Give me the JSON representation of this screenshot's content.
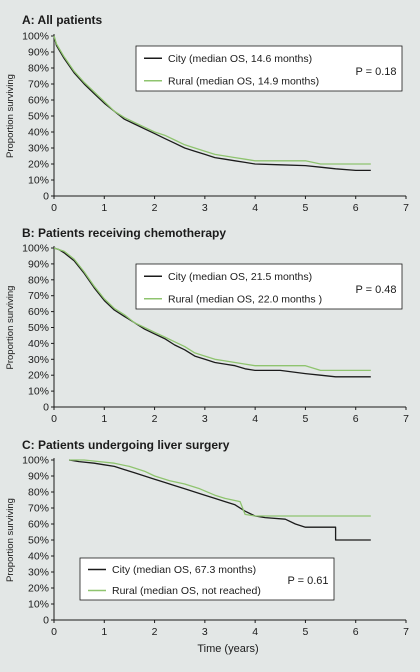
{
  "figure": {
    "xlabel": "Time (years)",
    "ylabel": "Proportion surviving"
  },
  "colors": {
    "background": "#e3e7e6",
    "city": "#1b1b1b",
    "rural": "#8fc46f",
    "axis": "#1b1b1b"
  },
  "chart_data": [
    {
      "type": "line",
      "title": "A:  All patients",
      "xlabel": "",
      "ylabel": "Proportion surviving",
      "xlim": [
        0,
        7
      ],
      "ylim": [
        0,
        100
      ],
      "x_ticks": [
        0,
        1,
        2,
        3,
        4,
        5,
        6,
        7
      ],
      "y_ticks": [
        0,
        10,
        20,
        30,
        40,
        50,
        60,
        70,
        80,
        90,
        100
      ],
      "y_tick_labels": [
        "0",
        "10%",
        "20%",
        "30%",
        "40%",
        "50%",
        "60%",
        "70%",
        "80%",
        "90%",
        "100%"
      ],
      "legend_position": "top-right",
      "annotation": "P = 0.18",
      "series": [
        {
          "name": "City",
          "legend_label": "City      (median OS, 14.6 months)",
          "color": "#1b1b1b",
          "points": [
            [
              0,
              100
            ],
            [
              0.05,
              94
            ],
            [
              0.2,
              86
            ],
            [
              0.4,
              77
            ],
            [
              0.6,
              70
            ],
            [
              0.8,
              64
            ],
            [
              1.0,
              58
            ],
            [
              1.2,
              53
            ],
            [
              1.4,
              48
            ],
            [
              1.6,
              45
            ],
            [
              1.8,
              42
            ],
            [
              2.0,
              39
            ],
            [
              2.2,
              36
            ],
            [
              2.4,
              33
            ],
            [
              2.6,
              30
            ],
            [
              2.8,
              28
            ],
            [
              3.0,
              26
            ],
            [
              3.2,
              24
            ],
            [
              3.4,
              23
            ],
            [
              3.6,
              22
            ],
            [
              3.8,
              21
            ],
            [
              4.0,
              20
            ],
            [
              4.5,
              19.5
            ],
            [
              5.0,
              19
            ],
            [
              5.3,
              18
            ],
            [
              5.6,
              17
            ],
            [
              6.0,
              16
            ],
            [
              6.3,
              16
            ]
          ]
        },
        {
          "name": "Rural",
          "legend_label": "Rural     (median OS, 14.9 months)",
          "color": "#8fc46f",
          "points": [
            [
              0,
              100
            ],
            [
              0.05,
              95
            ],
            [
              0.2,
              87
            ],
            [
              0.4,
              78
            ],
            [
              0.6,
              71
            ],
            [
              0.8,
              65
            ],
            [
              1.0,
              59
            ],
            [
              1.2,
              53
            ],
            [
              1.4,
              49
            ],
            [
              1.6,
              46
            ],
            [
              1.8,
              43
            ],
            [
              2.0,
              40
            ],
            [
              2.2,
              38
            ],
            [
              2.4,
              35
            ],
            [
              2.6,
              32
            ],
            [
              2.8,
              30
            ],
            [
              3.0,
              28
            ],
            [
              3.2,
              26
            ],
            [
              3.4,
              25
            ],
            [
              3.6,
              24
            ],
            [
              3.8,
              23
            ],
            [
              4.0,
              22
            ],
            [
              4.5,
              22
            ],
            [
              5.0,
              22
            ],
            [
              5.3,
              20
            ],
            [
              6.0,
              20
            ],
            [
              6.3,
              20
            ]
          ]
        }
      ]
    },
    {
      "type": "line",
      "title": "B:  Patients receiving chemotherapy",
      "xlabel": "",
      "ylabel": "Proportion surviving",
      "xlim": [
        0,
        7
      ],
      "ylim": [
        0,
        100
      ],
      "x_ticks": [
        0,
        1,
        2,
        3,
        4,
        5,
        6,
        7
      ],
      "y_ticks": [
        0,
        10,
        20,
        30,
        40,
        50,
        60,
        70,
        80,
        90,
        100
      ],
      "y_tick_labels": [
        "0",
        "10%",
        "20%",
        "30%",
        "40%",
        "50%",
        "60%",
        "70%",
        "80%",
        "90%",
        "100%"
      ],
      "legend_position": "top-right",
      "annotation": "P = 0.48",
      "series": [
        {
          "name": "City",
          "legend_label": "City      (median OS, 21.5 months)",
          "color": "#1b1b1b",
          "points": [
            [
              0,
              100
            ],
            [
              0.1,
              99
            ],
            [
              0.2,
              97
            ],
            [
              0.4,
              92
            ],
            [
              0.6,
              84
            ],
            [
              0.8,
              75
            ],
            [
              1.0,
              67
            ],
            [
              1.2,
              61
            ],
            [
              1.4,
              57
            ],
            [
              1.6,
              53
            ],
            [
              1.8,
              49
            ],
            [
              2.0,
              46
            ],
            [
              2.2,
              43
            ],
            [
              2.4,
              39
            ],
            [
              2.6,
              36
            ],
            [
              2.8,
              32
            ],
            [
              3.0,
              30
            ],
            [
              3.2,
              28
            ],
            [
              3.4,
              27
            ],
            [
              3.6,
              26
            ],
            [
              3.8,
              24
            ],
            [
              4.0,
              23
            ],
            [
              4.5,
              23
            ],
            [
              5.0,
              21
            ],
            [
              5.3,
              20
            ],
            [
              5.6,
              19
            ],
            [
              6.0,
              19
            ],
            [
              6.3,
              19
            ]
          ]
        },
        {
          "name": "Rural",
          "legend_label": "Rural     (median OS, 22.0 months )",
          "color": "#8fc46f",
          "points": [
            [
              0,
              100
            ],
            [
              0.1,
              99
            ],
            [
              0.2,
              98
            ],
            [
              0.4,
              93
            ],
            [
              0.6,
              85
            ],
            [
              0.8,
              76
            ],
            [
              1.0,
              68
            ],
            [
              1.2,
              62
            ],
            [
              1.4,
              58
            ],
            [
              1.6,
              53
            ],
            [
              1.8,
              50
            ],
            [
              2.0,
              47
            ],
            [
              2.2,
              44
            ],
            [
              2.4,
              41
            ],
            [
              2.6,
              38
            ],
            [
              2.8,
              34
            ],
            [
              3.0,
              32
            ],
            [
              3.2,
              30
            ],
            [
              3.4,
              29
            ],
            [
              3.6,
              28
            ],
            [
              3.8,
              27
            ],
            [
              4.0,
              26
            ],
            [
              4.5,
              26
            ],
            [
              5.0,
              26
            ],
            [
              5.3,
              23
            ],
            [
              6.0,
              23
            ],
            [
              6.3,
              23
            ]
          ]
        }
      ]
    },
    {
      "type": "line",
      "title": "C:  Patients undergoing liver surgery",
      "xlabel": "Time (years)",
      "ylabel": "Proportion surviving",
      "xlim": [
        0,
        7
      ],
      "ylim": [
        0,
        100
      ],
      "x_ticks": [
        0,
        1,
        2,
        3,
        4,
        5,
        6,
        7
      ],
      "y_ticks": [
        0,
        10,
        20,
        30,
        40,
        50,
        60,
        70,
        80,
        90,
        100
      ],
      "y_tick_labels": [
        "0",
        "10%",
        "20%",
        "30%",
        "40%",
        "50%",
        "60%",
        "70%",
        "80%",
        "90%",
        "100%"
      ],
      "legend_position": "bottom-left",
      "annotation": "P = 0.61",
      "series": [
        {
          "name": "City",
          "legend_label": "City      (median OS, 67.3 months)",
          "color": "#1b1b1b",
          "points": [
            [
              0.3,
              100
            ],
            [
              0.5,
              99
            ],
            [
              0.8,
              98
            ],
            [
              1.0,
              97
            ],
            [
              1.2,
              96
            ],
            [
              1.4,
              94
            ],
            [
              1.6,
              92
            ],
            [
              1.8,
              90
            ],
            [
              2.0,
              88
            ],
            [
              2.2,
              86
            ],
            [
              2.4,
              84
            ],
            [
              2.6,
              82
            ],
            [
              2.8,
              80
            ],
            [
              3.0,
              78
            ],
            [
              3.2,
              76
            ],
            [
              3.4,
              74
            ],
            [
              3.6,
              72
            ],
            [
              3.8,
              68
            ],
            [
              4.0,
              65
            ],
            [
              4.2,
              64
            ],
            [
              4.6,
              63
            ],
            [
              4.8,
              60
            ],
            [
              5.0,
              58
            ],
            [
              5.6,
              58
            ],
            [
              5.6,
              50
            ],
            [
              6.3,
              50
            ]
          ]
        },
        {
          "name": "Rural",
          "legend_label": "Rural     (median OS, not reached)",
          "color": "#8fc46f",
          "points": [
            [
              0.3,
              100
            ],
            [
              0.6,
              100
            ],
            [
              0.9,
              99
            ],
            [
              1.2,
              98
            ],
            [
              1.5,
              96
            ],
            [
              1.8,
              93
            ],
            [
              2.0,
              90
            ],
            [
              2.3,
              87
            ],
            [
              2.6,
              85
            ],
            [
              2.9,
              82
            ],
            [
              3.2,
              78
            ],
            [
              3.4,
              76
            ],
            [
              3.7,
              74
            ],
            [
              3.8,
              66
            ],
            [
              4.0,
              65
            ],
            [
              4.5,
              65
            ],
            [
              5.0,
              65
            ],
            [
              6.3,
              65
            ]
          ]
        }
      ]
    }
  ]
}
